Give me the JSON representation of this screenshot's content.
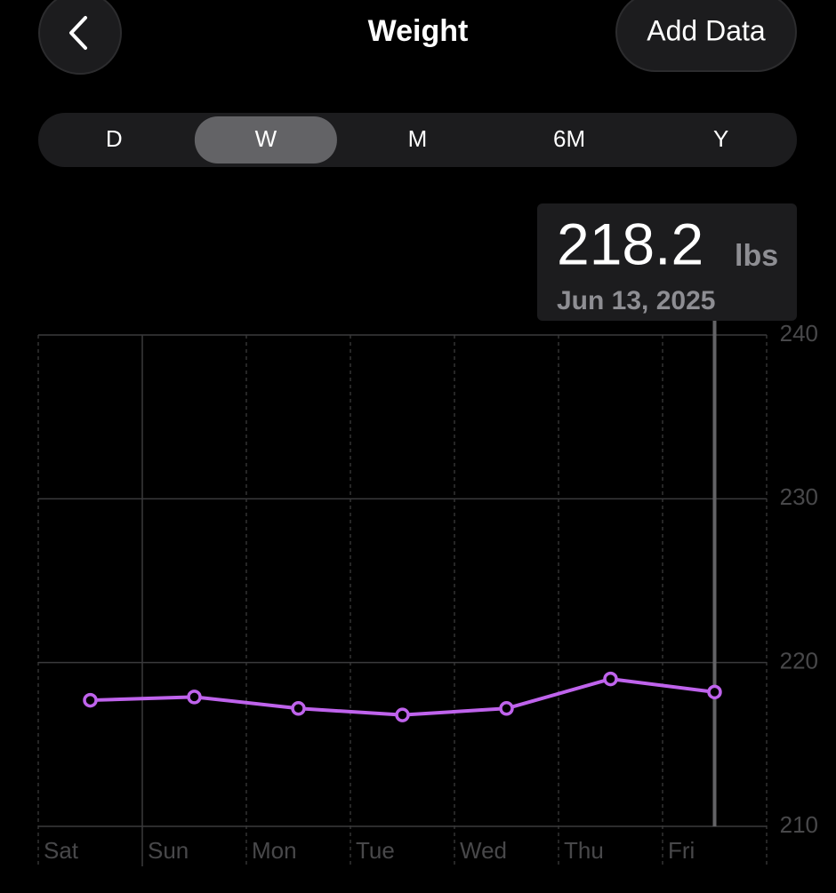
{
  "header": {
    "title": "Weight",
    "action": "Add Data"
  },
  "segments": {
    "items": [
      "D",
      "W",
      "M",
      "6M",
      "Y"
    ],
    "selected": 1
  },
  "selection": {
    "value": "218.2",
    "unit": "lbs",
    "date": "Jun 13, 2025",
    "index": 6
  },
  "chart_data": {
    "type": "line",
    "categories": [
      "Sat",
      "Sun",
      "Mon",
      "Tue",
      "Wed",
      "Thu",
      "Fri"
    ],
    "series": [
      {
        "color": "#bf63ec",
        "values": [
          217.7,
          217.9,
          217.2,
          216.8,
          217.2,
          219.0,
          218.2
        ]
      }
    ],
    "ylim": [
      210,
      240
    ],
    "yticks": [
      210,
      220,
      230,
      240
    ],
    "grid": true
  }
}
